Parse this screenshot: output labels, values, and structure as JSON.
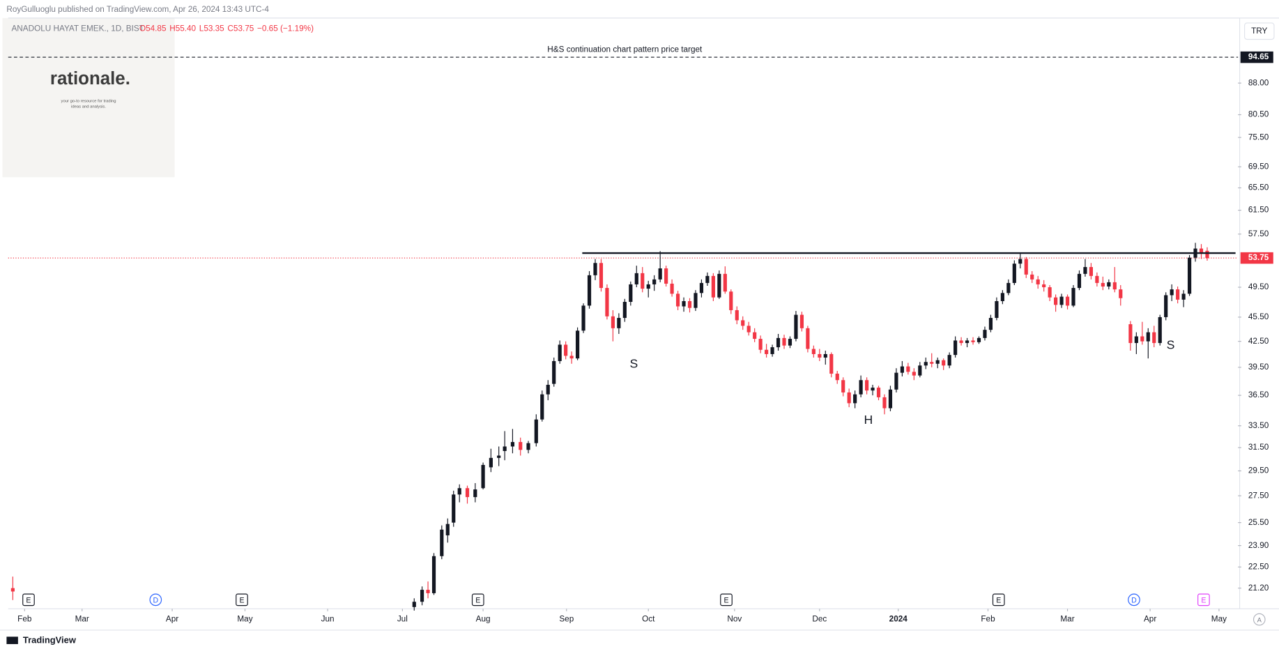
{
  "chart_data": {
    "type": "candlestick",
    "header": "RoyGulluoglu published on TradingView.com, Apr 26, 2024 13:43 UTC-4",
    "symbol": "ANADOLU HAYAT EMEK., 1D, BIST",
    "legend_values": [
      "O54.85",
      "H55.40",
      "L53.35",
      "C53.75",
      "−0.65 (−1.19%)"
    ],
    "currency": "TRY",
    "logo": "rationale.",
    "logo_tagline": [
      "your go-to resource for trading",
      "ideas and analysis."
    ],
    "footer": "TradingView",
    "up_color": "#131722",
    "down_color": "#f23645",
    "log_scale": true,
    "xlim": [
      -4.17,
      308.33
    ],
    "ylim": [
      20.0,
      105.7
    ],
    "xticks": [
      {
        "value": 0,
        "label": "Feb"
      },
      {
        "value": 14.6,
        "label": "Mar"
      },
      {
        "value": 37.5,
        "label": "Apr"
      },
      {
        "value": 56,
        "label": "May"
      },
      {
        "value": 77,
        "label": "Jun"
      },
      {
        "value": 96,
        "label": "Jul"
      },
      {
        "value": 116.5,
        "label": "Aug"
      },
      {
        "value": 137.7,
        "label": "Sep"
      },
      {
        "value": 158.5,
        "label": "Oct"
      },
      {
        "value": 180.4,
        "label": "Nov"
      },
      {
        "value": 202,
        "label": "Dec"
      },
      {
        "value": 222,
        "label": "2024"
      },
      {
        "value": 244.8,
        "label": "Feb"
      },
      {
        "value": 265,
        "label": "Mar"
      },
      {
        "value": 286,
        "label": "Apr"
      },
      {
        "value": 303.5,
        "label": "May"
      }
    ],
    "yticks": [
      {
        "value": 88,
        "label": "88.00"
      },
      {
        "value": 80.5,
        "label": "80.50"
      },
      {
        "value": 75.5,
        "label": "75.50"
      },
      {
        "value": 69.5,
        "label": "69.50"
      },
      {
        "value": 65.5,
        "label": "65.50"
      },
      {
        "value": 61.5,
        "label": "61.50"
      },
      {
        "value": 57.5,
        "label": "57.50"
      },
      {
        "value": 49.5,
        "label": "49.50"
      },
      {
        "value": 45.5,
        "label": "45.50"
      },
      {
        "value": 42.5,
        "label": "42.50"
      },
      {
        "value": 39.5,
        "label": "39.50"
      },
      {
        "value": 36.5,
        "label": "36.50"
      },
      {
        "value": 33.5,
        "label": "33.50"
      },
      {
        "value": 31.5,
        "label": "31.50"
      },
      {
        "value": 29.5,
        "label": "29.50"
      },
      {
        "value": 27.5,
        "label": "27.50"
      },
      {
        "value": 25.5,
        "label": "25.50"
      },
      {
        "value": 23.9,
        "label": "23.90"
      },
      {
        "value": 22.5,
        "label": "22.50"
      },
      {
        "value": 21.2,
        "label": "21.20"
      }
    ],
    "last_price": {
      "value": 53.75,
      "label": "53.75"
    },
    "target": {
      "value": 94.65,
      "label": "94.65",
      "text": "H&S continuation chart pattern price target"
    },
    "neckline": {
      "x": [
        141.7,
        307.7
      ],
      "value": 54.5
    },
    "pattern_labels": [
      {
        "x": 154.8,
        "value": 39.8,
        "label": "S"
      },
      {
        "x": 214.4,
        "value": 34.0,
        "label": "H"
      },
      {
        "x": 291.2,
        "value": 42.0,
        "label": "S"
      }
    ],
    "events": [
      {
        "x": 1,
        "label": "E"
      },
      {
        "x": 33.3,
        "label": "D"
      },
      {
        "x": 55.2,
        "label": "E"
      },
      {
        "x": 115.2,
        "label": "E"
      },
      {
        "x": 178.3,
        "label": "E"
      },
      {
        "x": 247.5,
        "label": "E"
      },
      {
        "x": 281.9,
        "label": "D"
      },
      {
        "x": 299.6,
        "label": "E"
      }
    ],
    "candles": [
      [
        -3,
        21.2,
        21.9,
        20.5,
        21.0
      ],
      [
        99,
        20.1,
        20.6,
        19.9,
        20.4
      ],
      [
        101,
        20.4,
        21.3,
        20.2,
        21.1
      ],
      [
        102.5,
        21.1,
        21.6,
        20.6,
        20.9
      ],
      [
        104,
        20.9,
        23.4,
        20.8,
        23.2
      ],
      [
        106,
        23.2,
        25.3,
        23.0,
        25.0
      ],
      [
        107.5,
        24.6,
        25.8,
        24.1,
        25.4
      ],
      [
        109,
        25.5,
        27.9,
        25.2,
        27.6
      ],
      [
        110.5,
        27.6,
        28.4,
        27.0,
        28.1
      ],
      [
        112.5,
        28.1,
        28.3,
        26.9,
        27.4
      ],
      [
        114.5,
        27.4,
        28.5,
        27.0,
        28.0
      ],
      [
        116.5,
        28.1,
        30.2,
        28.0,
        30.0
      ],
      [
        118.5,
        29.8,
        31.4,
        29.4,
        30.6
      ],
      [
        120.5,
        30.6,
        31.6,
        29.9,
        30.8
      ],
      [
        122,
        31.2,
        33.0,
        30.4,
        31.6
      ],
      [
        124,
        31.6,
        33.2,
        31.0,
        32.0
      ],
      [
        126,
        32.0,
        32.4,
        30.8,
        31.3
      ],
      [
        128,
        31.3,
        32.1,
        31.0,
        31.9
      ],
      [
        130,
        31.9,
        34.6,
        31.6,
        34.1
      ],
      [
        131.5,
        34.1,
        37.0,
        33.9,
        36.6
      ],
      [
        133,
        36.6,
        38.1,
        36.0,
        37.6
      ],
      [
        134.5,
        37.7,
        40.6,
        37.4,
        40.2
      ],
      [
        136,
        40.2,
        42.6,
        39.9,
        42.1
      ],
      [
        137.5,
        42.1,
        42.5,
        40.4,
        40.8
      ],
      [
        139,
        40.8,
        41.3,
        39.9,
        40.5
      ],
      [
        140.5,
        40.5,
        44.2,
        40.3,
        43.8
      ],
      [
        142,
        43.8,
        47.3,
        43.5,
        47.0
      ],
      [
        143.5,
        47.0,
        51.8,
        46.6,
        51.2
      ],
      [
        145,
        51.2,
        53.6,
        50.5,
        53.0
      ],
      [
        146.5,
        53.0,
        53.6,
        48.9,
        49.4
      ],
      [
        148,
        49.4,
        49.9,
        45.2,
        45.6
      ],
      [
        149.5,
        45.6,
        46.4,
        42.5,
        44.1
      ],
      [
        151,
        44.1,
        46.0,
        43.4,
        45.4
      ],
      [
        152.5,
        45.4,
        47.9,
        44.9,
        47.5
      ],
      [
        154,
        47.5,
        50.3,
        47.0,
        49.9
      ],
      [
        155.5,
        49.9,
        52.6,
        49.5,
        51.5
      ],
      [
        157,
        51.5,
        52.4,
        48.8,
        49.3
      ],
      [
        158.5,
        49.3,
        50.4,
        48.1,
        49.9
      ],
      [
        160,
        49.9,
        51.2,
        49.0,
        50.6
      ],
      [
        161.5,
        50.6,
        54.8,
        50.2,
        52.2
      ],
      [
        163,
        52.2,
        52.6,
        49.6,
        50.0
      ],
      [
        164.5,
        50.0,
        50.6,
        48.2,
        48.6
      ],
      [
        166,
        48.6,
        49.0,
        46.4,
        46.9
      ],
      [
        167.5,
        46.9,
        48.1,
        46.2,
        47.6
      ],
      [
        169,
        47.6,
        48.0,
        46.1,
        46.7
      ],
      [
        170.5,
        46.7,
        49.1,
        46.3,
        48.7
      ],
      [
        172,
        48.7,
        50.6,
        48.1,
        50.1
      ],
      [
        173.5,
        50.1,
        51.6,
        49.7,
        51.1
      ],
      [
        175,
        51.1,
        51.5,
        47.6,
        48.1
      ],
      [
        176.5,
        48.1,
        51.9,
        47.9,
        51.4
      ],
      [
        178,
        51.4,
        52.5,
        48.6,
        48.9
      ],
      [
        179.5,
        48.9,
        49.2,
        45.9,
        46.4
      ],
      [
        181,
        46.4,
        46.9,
        44.6,
        45.1
      ],
      [
        182.5,
        45.1,
        45.6,
        43.9,
        44.4
      ],
      [
        184,
        44.4,
        44.9,
        43.2,
        43.6
      ],
      [
        185.5,
        43.6,
        44.1,
        42.4,
        42.8
      ],
      [
        187,
        42.8,
        43.2,
        41.1,
        41.5
      ],
      [
        188.5,
        41.5,
        42.2,
        40.6,
        41.0
      ],
      [
        190,
        41.0,
        42.1,
        40.7,
        41.8
      ],
      [
        191.5,
        41.8,
        43.4,
        41.4,
        42.9
      ],
      [
        193,
        42.9,
        43.3,
        41.6,
        42.0
      ],
      [
        194.5,
        42.0,
        43.1,
        41.7,
        42.8
      ],
      [
        196,
        42.8,
        46.3,
        42.5,
        45.8
      ],
      [
        197.5,
        45.8,
        46.2,
        43.7,
        44.1
      ],
      [
        199,
        44.1,
        44.4,
        41.2,
        41.6
      ],
      [
        200.5,
        41.6,
        42.0,
        40.6,
        41.0
      ],
      [
        202,
        41.0,
        41.6,
        40.2,
        40.6
      ],
      [
        203.5,
        40.6,
        41.4,
        39.8,
        41.0
      ],
      [
        205,
        41.0,
        41.2,
        38.4,
        38.8
      ],
      [
        206.5,
        38.8,
        39.1,
        37.7,
        38.1
      ],
      [
        208,
        38.1,
        38.4,
        36.4,
        36.8
      ],
      [
        209.5,
        36.8,
        37.2,
        35.3,
        35.7
      ],
      [
        211,
        35.7,
        37.0,
        35.2,
        36.6
      ],
      [
        212.5,
        36.6,
        38.6,
        36.3,
        38.1
      ],
      [
        214,
        38.1,
        38.4,
        36.6,
        37.0
      ],
      [
        215.5,
        37.0,
        37.6,
        36.5,
        37.3
      ],
      [
        217,
        37.3,
        37.5,
        36.0,
        36.3
      ],
      [
        218.5,
        36.3,
        36.6,
        34.6,
        35.2
      ],
      [
        220,
        35.2,
        37.5,
        34.9,
        37.1
      ],
      [
        221.5,
        37.1,
        39.4,
        36.8,
        38.9
      ],
      [
        223,
        38.9,
        40.2,
        38.5,
        39.6
      ],
      [
        224.5,
        39.6,
        40.0,
        38.7,
        39.0
      ],
      [
        226,
        39.0,
        39.4,
        38.1,
        38.6
      ],
      [
        227.5,
        38.6,
        40.1,
        38.4,
        39.7
      ],
      [
        229,
        39.7,
        40.6,
        39.3,
        40.1
      ],
      [
        230.5,
        40.1,
        41.1,
        39.5,
        39.9
      ],
      [
        232,
        39.9,
        40.6,
        39.4,
        40.3
      ],
      [
        233.5,
        40.3,
        40.5,
        39.2,
        39.7
      ],
      [
        235,
        39.7,
        41.2,
        39.4,
        40.9
      ],
      [
        236.5,
        40.9,
        43.1,
        40.6,
        42.6
      ],
      [
        238,
        42.6,
        43.0,
        42.0,
        42.3
      ],
      [
        239.5,
        42.3,
        42.9,
        41.8,
        42.6
      ],
      [
        241,
        42.6,
        43.0,
        42.1,
        42.4
      ],
      [
        242.5,
        42.4,
        43.1,
        42.2,
        42.9
      ],
      [
        244,
        42.9,
        44.3,
        42.6,
        43.9
      ],
      [
        245.5,
        43.9,
        45.8,
        43.6,
        45.4
      ],
      [
        247,
        45.4,
        48.1,
        45.1,
        47.6
      ],
      [
        248.5,
        47.6,
        49.1,
        47.2,
        48.7
      ],
      [
        250,
        48.7,
        50.6,
        48.4,
        50.1
      ],
      [
        251.5,
        50.1,
        53.4,
        49.8,
        52.9
      ],
      [
        253,
        52.9,
        54.4,
        52.2,
        53.6
      ],
      [
        254.5,
        53.6,
        53.9,
        50.8,
        51.3
      ],
      [
        256,
        51.3,
        51.8,
        50.1,
        50.6
      ],
      [
        257.5,
        50.6,
        51.1,
        49.3,
        49.9
      ],
      [
        259,
        49.9,
        50.5,
        48.9,
        49.5
      ],
      [
        260.5,
        49.5,
        49.8,
        47.6,
        48.1
      ],
      [
        262,
        48.1,
        48.5,
        46.2,
        47.1
      ],
      [
        263.5,
        47.1,
        48.6,
        46.7,
        48.2
      ],
      [
        265,
        48.2,
        48.5,
        46.5,
        47.0
      ],
      [
        266.5,
        47.0,
        49.8,
        46.8,
        49.4
      ],
      [
        268,
        49.4,
        51.9,
        49.1,
        51.4
      ],
      [
        269.5,
        51.4,
        53.6,
        51.0,
        52.4
      ],
      [
        271,
        52.4,
        53.0,
        50.6,
        51.1
      ],
      [
        272.5,
        51.1,
        51.6,
        49.6,
        50.1
      ],
      [
        274,
        50.1,
        51.0,
        49.1,
        49.6
      ],
      [
        275.5,
        49.6,
        50.6,
        49.2,
        50.2
      ],
      [
        277,
        50.2,
        52.4,
        48.8,
        49.2
      ],
      [
        278.5,
        49.2,
        49.8,
        47.0,
        48.0
      ],
      [
        281,
        44.6,
        45.0,
        41.4,
        42.3
      ],
      [
        282.5,
        42.3,
        43.6,
        41.0,
        43.1
      ],
      [
        284,
        43.1,
        44.9,
        42.1,
        42.5
      ],
      [
        285.5,
        42.5,
        44.1,
        40.5,
        43.6
      ],
      [
        287,
        43.6,
        44.4,
        41.8,
        42.3
      ],
      [
        288.5,
        42.3,
        45.8,
        42.0,
        45.5
      ],
      [
        290,
        45.5,
        48.8,
        45.1,
        48.4
      ],
      [
        291.5,
        48.4,
        49.9,
        47.6,
        49.2
      ],
      [
        293,
        49.2,
        49.6,
        47.3,
        47.8
      ],
      [
        294.5,
        47.8,
        49.1,
        46.8,
        48.6
      ],
      [
        296,
        48.6,
        54.2,
        48.3,
        53.8
      ],
      [
        297.5,
        53.8,
        56.1,
        53.2,
        55.2
      ],
      [
        299,
        55.2,
        55.9,
        53.6,
        54.4
      ],
      [
        300.5,
        54.85,
        55.4,
        53.35,
        53.75
      ]
    ]
  }
}
